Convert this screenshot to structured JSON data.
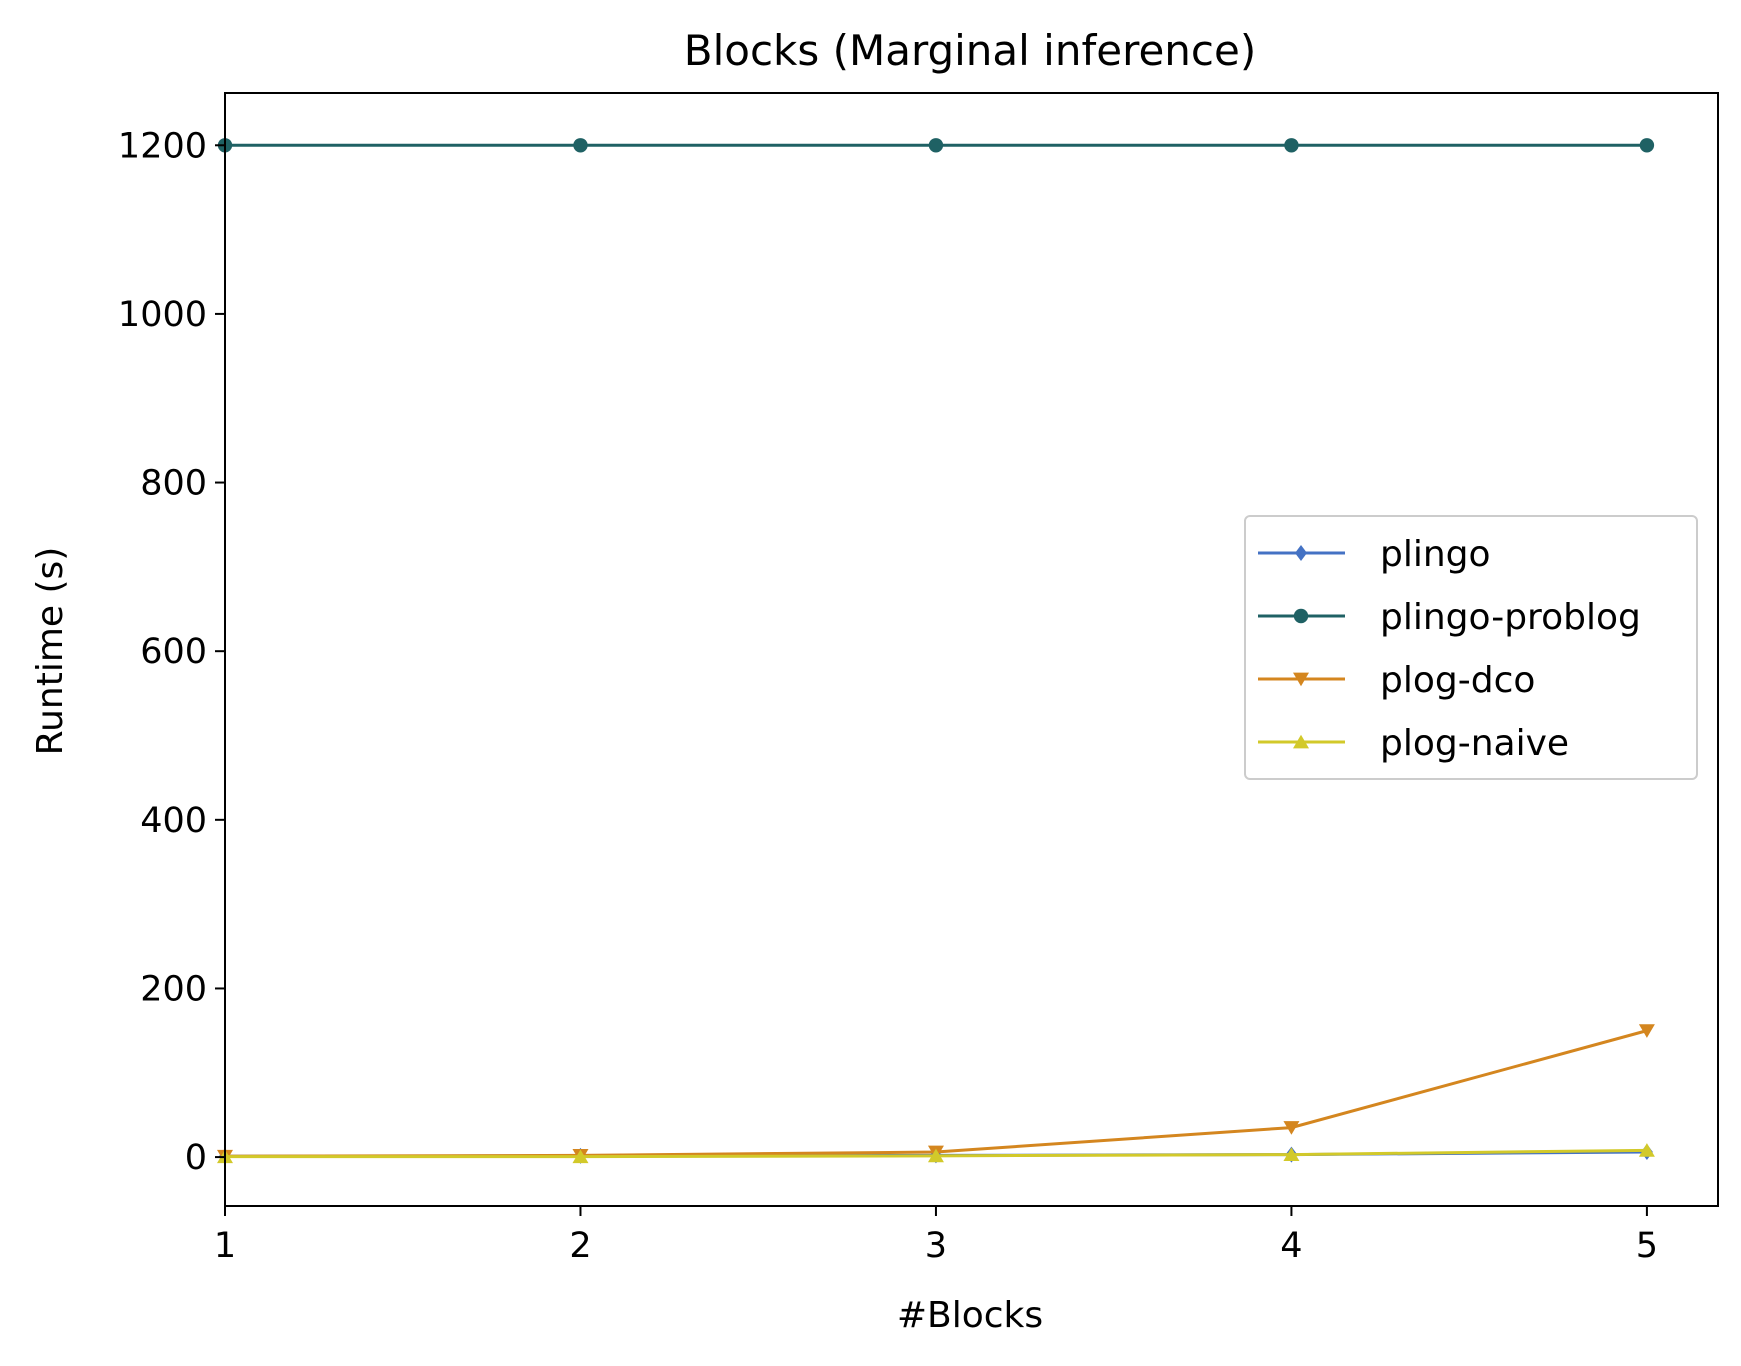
{
  "chart_data": {
    "type": "line",
    "title": "Blocks (Marginal inference)",
    "xlabel": "#Blocks",
    "ylabel": "Runtime (s)",
    "x": [
      1,
      2,
      3,
      4,
      5
    ],
    "xlim": [
      1,
      5.2
    ],
    "ylim": [
      -58,
      1262
    ],
    "xticks": [
      "1",
      "2",
      "3",
      "4",
      "5"
    ],
    "yticks": [
      "0",
      "200",
      "400",
      "600",
      "800",
      "1000",
      "1200"
    ],
    "legend_position": "center-right",
    "grid": false,
    "series": [
      {
        "name": "plingo",
        "color": "#4472c4",
        "marker": "diamond",
        "values": [
          1,
          1.5,
          2,
          3,
          6
        ]
      },
      {
        "name": "plingo-problog",
        "color": "#1f6164",
        "marker": "circle",
        "values": [
          1200,
          1200,
          1200,
          1200,
          1200
        ]
      },
      {
        "name": "plog-dco",
        "color": "#d4861f",
        "marker": "triangle-down",
        "values": [
          1,
          2,
          6,
          35,
          150
        ]
      },
      {
        "name": "plog-naive",
        "color": "#d2c92a",
        "marker": "triangle-up",
        "values": [
          0.5,
          0.5,
          1.5,
          3,
          8
        ]
      }
    ]
  }
}
